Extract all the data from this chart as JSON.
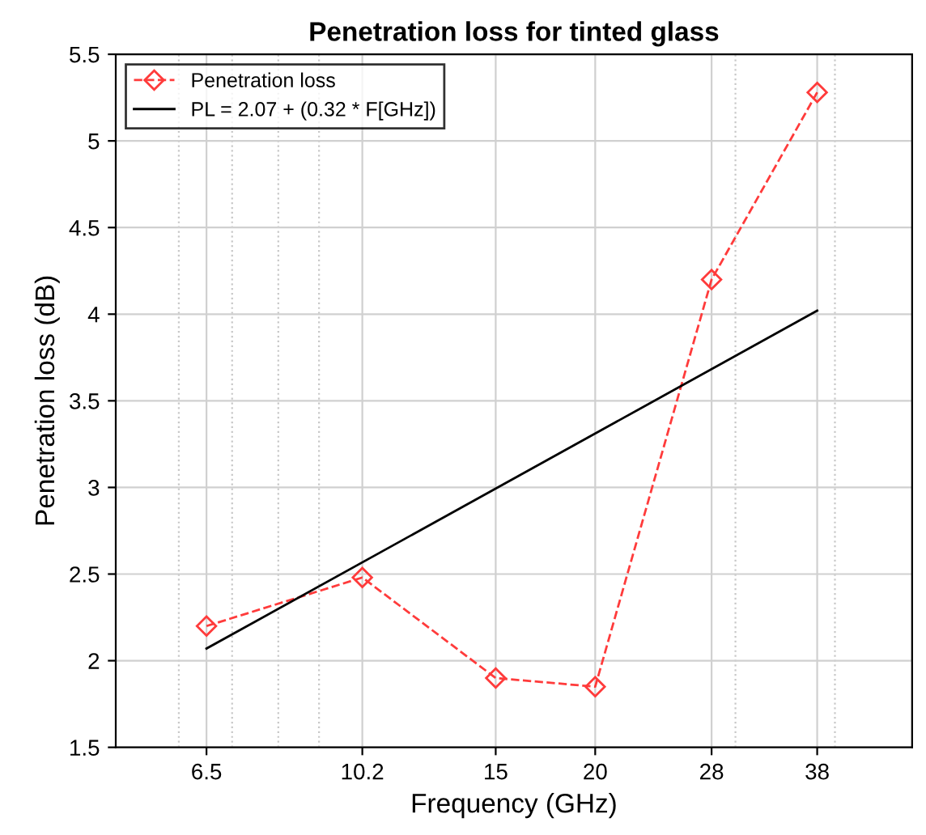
{
  "chart_data": {
    "type": "line",
    "title": "Penetration loss for tinted glass",
    "xlabel": "Frequency (GHz)",
    "ylabel": "Penetration loss (dB)",
    "log": "x",
    "xlim": [
      5,
      50
    ],
    "xticks": [
      6.5,
      10.2,
      15,
      20,
      28,
      38
    ],
    "ylim": [
      1.5,
      5.5
    ],
    "yticks": [
      1.5,
      2,
      2.5,
      3,
      3.5,
      4,
      4.5,
      5,
      5.5
    ],
    "grid": true,
    "legend": "top left",
    "series": [
      {
        "name": "Penetration loss",
        "color": "#ff3b3b",
        "x": [
          6.5,
          10.2,
          15,
          20,
          28,
          38
        ],
        "values": [
          2.2,
          2.48,
          1.9,
          1.85,
          4.2,
          5.28
        ],
        "marker": "diamond",
        "line_style": "dashed"
      },
      {
        "name": "PL = 2.07 + (0.32 * F[GHz])",
        "color": "#000000",
        "x": [
          6.5,
          38
        ],
        "values": [
          2.07,
          4.02
        ],
        "marker": "none",
        "line_style": "solid"
      }
    ]
  }
}
